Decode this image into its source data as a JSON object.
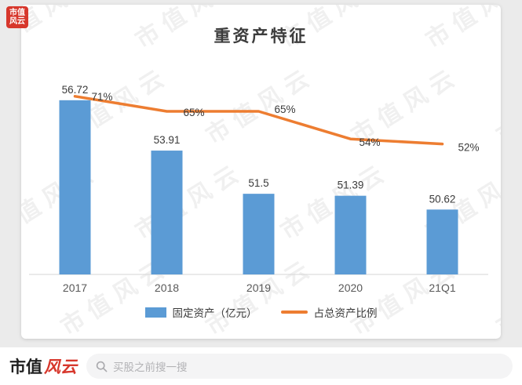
{
  "stamp": {
    "line1": "市值",
    "line2": "风云",
    "color": "#d7372c"
  },
  "watermark": {
    "text": "市值风云"
  },
  "chart_data": {
    "type": "bar",
    "title": "重资产特征",
    "categories": [
      "2017",
      "2018",
      "2019",
      "2020",
      "21Q1"
    ],
    "series": [
      {
        "name": "固定资产（亿元）",
        "type": "bar",
        "color": "#5B9BD5",
        "values": [
          56.72,
          53.91,
          51.5,
          51.39,
          50.62
        ],
        "labels": [
          "56.72",
          "53.91",
          "51.5",
          "51.39",
          "50.62"
        ]
      },
      {
        "name": "占总资产比例",
        "type": "line",
        "color": "#ED7D31",
        "values": [
          71,
          65,
          65,
          54,
          52
        ],
        "labels": [
          "71%",
          "65%",
          "65%",
          "54%",
          "52%"
        ]
      }
    ],
    "bar_axis": {
      "min": 47,
      "max": 57.5
    },
    "line_axis": {
      "min": 0,
      "max": 75
    },
    "xlabel": "",
    "ylabel": "",
    "grid": false,
    "legend_position": "bottom"
  },
  "footer": {
    "brand_black": "市值",
    "brand_red": "风云",
    "search_placeholder": "买股之前搜一搜"
  }
}
